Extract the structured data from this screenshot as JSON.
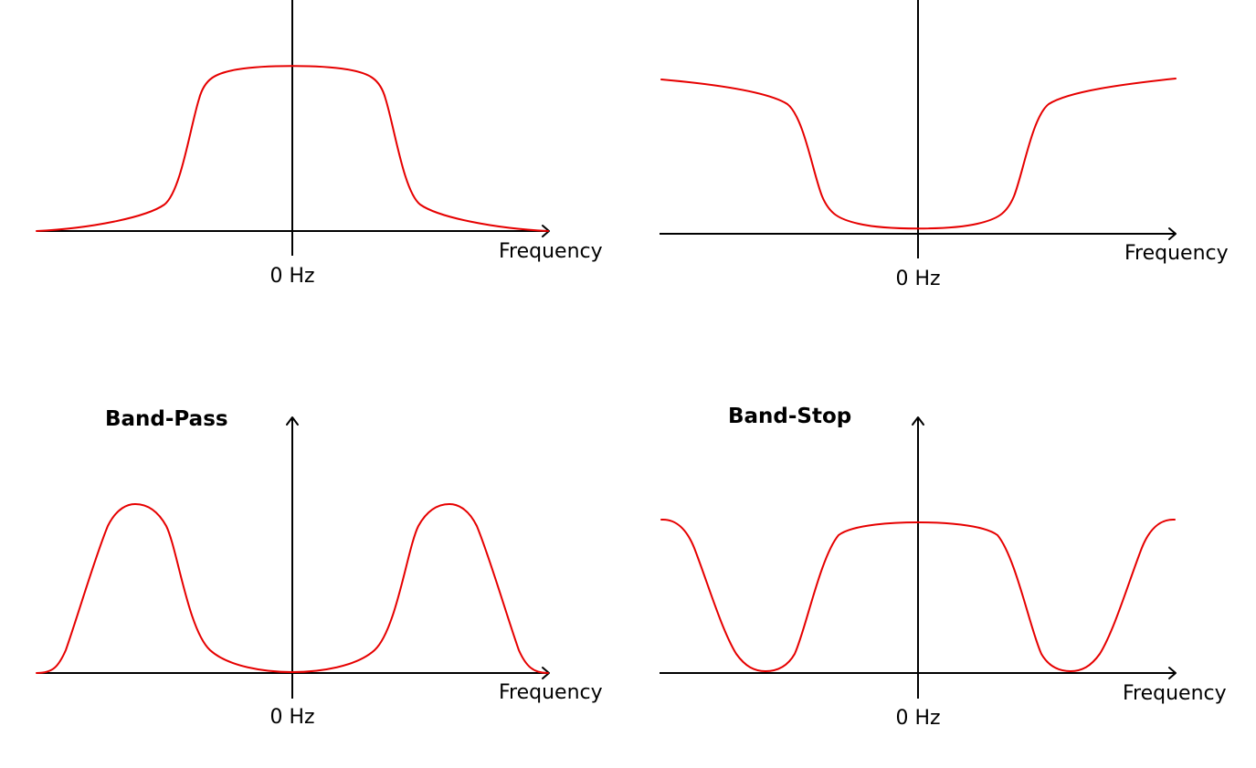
{
  "colors": {
    "curve": "#e60000",
    "axis": "#000000",
    "background": "#ffffff"
  },
  "panels": [
    {
      "name": "low-pass",
      "title": "",
      "x_label": "Frequency",
      "origin_label": "0 Hz",
      "response": "low-pass"
    },
    {
      "name": "high-pass",
      "title": "",
      "x_label": "Frequency",
      "origin_label": "0 Hz",
      "response": "high-pass"
    },
    {
      "name": "band-pass",
      "title": "Band-Pass",
      "x_label": "Frequency",
      "origin_label": "0 Hz",
      "response": "band-pass"
    },
    {
      "name": "band-stop",
      "title": "Band-Stop",
      "x_label": "Frequency",
      "origin_label": "0 Hz",
      "response": "band-stop"
    }
  ]
}
